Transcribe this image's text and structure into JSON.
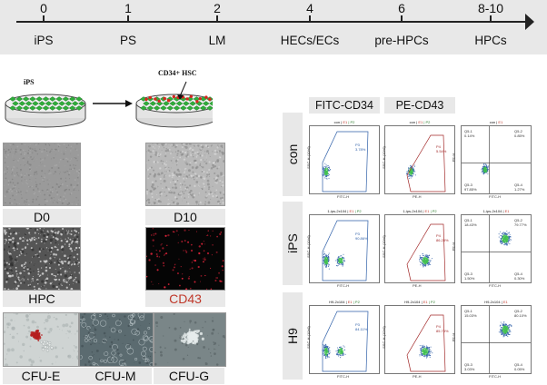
{
  "timeline": {
    "days": [
      "0",
      "1",
      "2",
      "4",
      "6",
      "8-10"
    ],
    "stages": [
      "iPS",
      "PS",
      "LM",
      "HECs/ECs",
      "pre-HPCs",
      "HPCs"
    ]
  },
  "dishes": {
    "left_label": "iPS",
    "right_label": "CD34+ HSC"
  },
  "micro": {
    "d0": "D0",
    "d10": "D10",
    "hpc": "HPC",
    "cd43": "CD43",
    "cfu_e": "CFU-E",
    "cfu_m": "CFU-M",
    "cfu_g": "CFU-G",
    "cd43_color": "#c0392b"
  },
  "flow": {
    "col_headers": [
      "FITC-CD34",
      "PE-CD43"
    ],
    "rows": [
      {
        "label": "con",
        "titles": [
          {
            "a": "con",
            "b": "E1",
            "c": "P2"
          },
          {
            "a": "con",
            "b": "E1",
            "c": "P2"
          },
          {
            "a": "con",
            "b": "E1",
            "c": ""
          }
        ],
        "gate1": {
          "name": "P3",
          "pct": "3.78%"
        },
        "gate2": {
          "name": "P4",
          "pct": "5.54%"
        },
        "quad": {
          "q1": "Q5-1",
          "q1p": "0.14%",
          "q2": "Q5-2",
          "q2p": "0.85%",
          "q3": "Q5-3",
          "q3p": "97.85%",
          "q4": "Q5-4",
          "q4p": "1.27%"
        }
      },
      {
        "label": "iPS",
        "titles": [
          {
            "a": "1-ips-2x104",
            "b": "E1",
            "c": "P2"
          },
          {
            "a": "1-ips-2x104",
            "b": "E1",
            "c": "P2"
          },
          {
            "a": "1-ips-2x104",
            "b": "E1",
            "c": ""
          }
        ],
        "gate1": {
          "name": "P3",
          "pct": "90.86%"
        },
        "gate2": {
          "name": "P4",
          "pct": "86.28%"
        },
        "quad": {
          "q1": "Q5-1",
          "q1p": "18.43%",
          "q2": "Q5-2",
          "q2p": "79.77%",
          "q3": "Q5-3",
          "q3p": "1.50%",
          "q4": "Q5-4",
          "q4p": "0.30%"
        }
      },
      {
        "label": "H9",
        "titles": [
          {
            "a": "H9-2x104",
            "b": "E1",
            "c": "P2"
          },
          {
            "a": "H9-2x104",
            "b": "E1",
            "c": "P2"
          },
          {
            "a": "H9-2x104",
            "b": "E1",
            "c": ""
          }
        ],
        "gate1": {
          "name": "P3",
          "pct": "84.11%"
        },
        "gate2": {
          "name": "P4",
          "pct": "85.73%"
        },
        "quad": {
          "q1": "Q5-1",
          "q1p": "15.03%",
          "q2": "Q5-2",
          "q2p": "80.10%",
          "q3": "Q5-3",
          "q3p": "3.03%",
          "q4": "Q5-4",
          "q4p": "0.05%"
        }
      }
    ],
    "axes": {
      "x1": "FITC-H",
      "y1": "SSC-H (10^6)",
      "x2": "PE-H",
      "y2": "SSC-H (10^6)",
      "x3": "FITC-H",
      "y3": "PE-H"
    },
    "gate1_color": "#2e5fa8",
    "gate2_color": "#a32a2a",
    "point_color": "#2e5fa8",
    "point_hot_color": "#3fbf4f"
  }
}
